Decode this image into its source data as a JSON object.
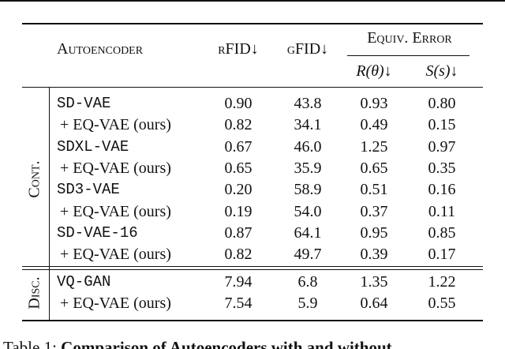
{
  "table": {
    "header": {
      "autoencoder": "Autoencoder",
      "rfid": "rFID↓",
      "gfid": "gFID↓",
      "equiv": "Equiv. Error",
      "r": "R(θ)↓",
      "s": "S(s)↓"
    },
    "groups": [
      {
        "label": "Cont.",
        "rows": [
          [
            "SD-VAE",
            "0.90",
            "43.8",
            "0.93",
            "0.80"
          ],
          [
            "+ EQ-VAE (ours)",
            "0.82",
            "34.1",
            "0.49",
            "0.15"
          ],
          [
            "SDXL-VAE",
            "0.67",
            "46.0",
            "1.25",
            "0.97"
          ],
          [
            "+ EQ-VAE (ours)",
            "0.65",
            "35.9",
            "0.65",
            "0.35"
          ],
          [
            "SD3-VAE",
            "0.20",
            "58.9",
            "0.51",
            "0.16"
          ],
          [
            "+ EQ-VAE (ours)",
            "0.19",
            "54.0",
            "0.37",
            "0.11"
          ],
          [
            "SD-VAE-16",
            "0.87",
            "64.1",
            "0.95",
            "0.85"
          ],
          [
            "+ EQ-VAE (ours)",
            "0.82",
            "49.7",
            "0.39",
            "0.17"
          ]
        ]
      },
      {
        "label": "Disc.",
        "rows": [
          [
            "VQ-GAN",
            "7.94",
            "6.8",
            "1.35",
            "1.22"
          ],
          [
            "+ EQ-VAE (ours)",
            "7.54",
            "5.9",
            "0.64",
            "0.55"
          ]
        ]
      }
    ]
  },
  "caption": {
    "label": "Table 1:",
    "text": "Comparison of Autoencoders with and without"
  }
}
